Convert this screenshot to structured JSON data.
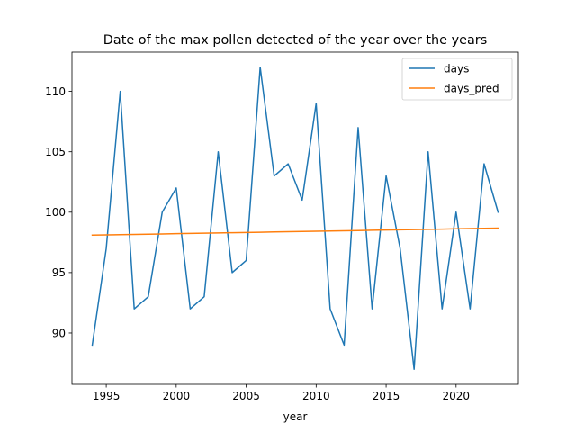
{
  "chart_data": {
    "type": "line",
    "title": "Date of the max pollen detected of the year over the years",
    "xlabel": "year",
    "ylabel": "",
    "xlim": [
      1992.55,
      2024.45
    ],
    "ylim": [
      85.75,
      113.25
    ],
    "xticks": [
      1995,
      2000,
      2005,
      2010,
      2015,
      2020
    ],
    "yticks": [
      90,
      95,
      100,
      105,
      110
    ],
    "grid": false,
    "legend_position": "top-right",
    "x": [
      1994,
      1995,
      1996,
      1997,
      1998,
      1999,
      2000,
      2001,
      2002,
      2003,
      2004,
      2005,
      2006,
      2007,
      2008,
      2009,
      2010,
      2011,
      2012,
      2013,
      2014,
      2015,
      2016,
      2017,
      2018,
      2019,
      2020,
      2021,
      2022,
      2023
    ],
    "series": [
      {
        "name": "days",
        "color": "#1f77b4",
        "values": [
          89,
          97,
          110,
          92,
          93,
          100,
          102,
          92,
          93,
          105,
          95,
          96,
          112,
          103,
          104,
          101,
          109,
          92,
          89,
          107,
          92,
          103,
          97,
          87,
          105,
          92,
          100,
          92,
          104,
          100
        ]
      },
      {
        "name": "days_pred",
        "color": "#ff7f0e",
        "values": [
          98.1,
          98.12,
          98.14,
          98.16,
          98.18,
          98.2,
          98.22,
          98.24,
          98.26,
          98.28,
          98.3,
          98.32,
          98.34,
          98.36,
          98.38,
          98.4,
          98.42,
          98.44,
          98.46,
          98.48,
          98.5,
          98.52,
          98.54,
          98.56,
          98.58,
          98.6,
          98.62,
          98.64,
          98.66,
          98.68
        ]
      }
    ]
  }
}
